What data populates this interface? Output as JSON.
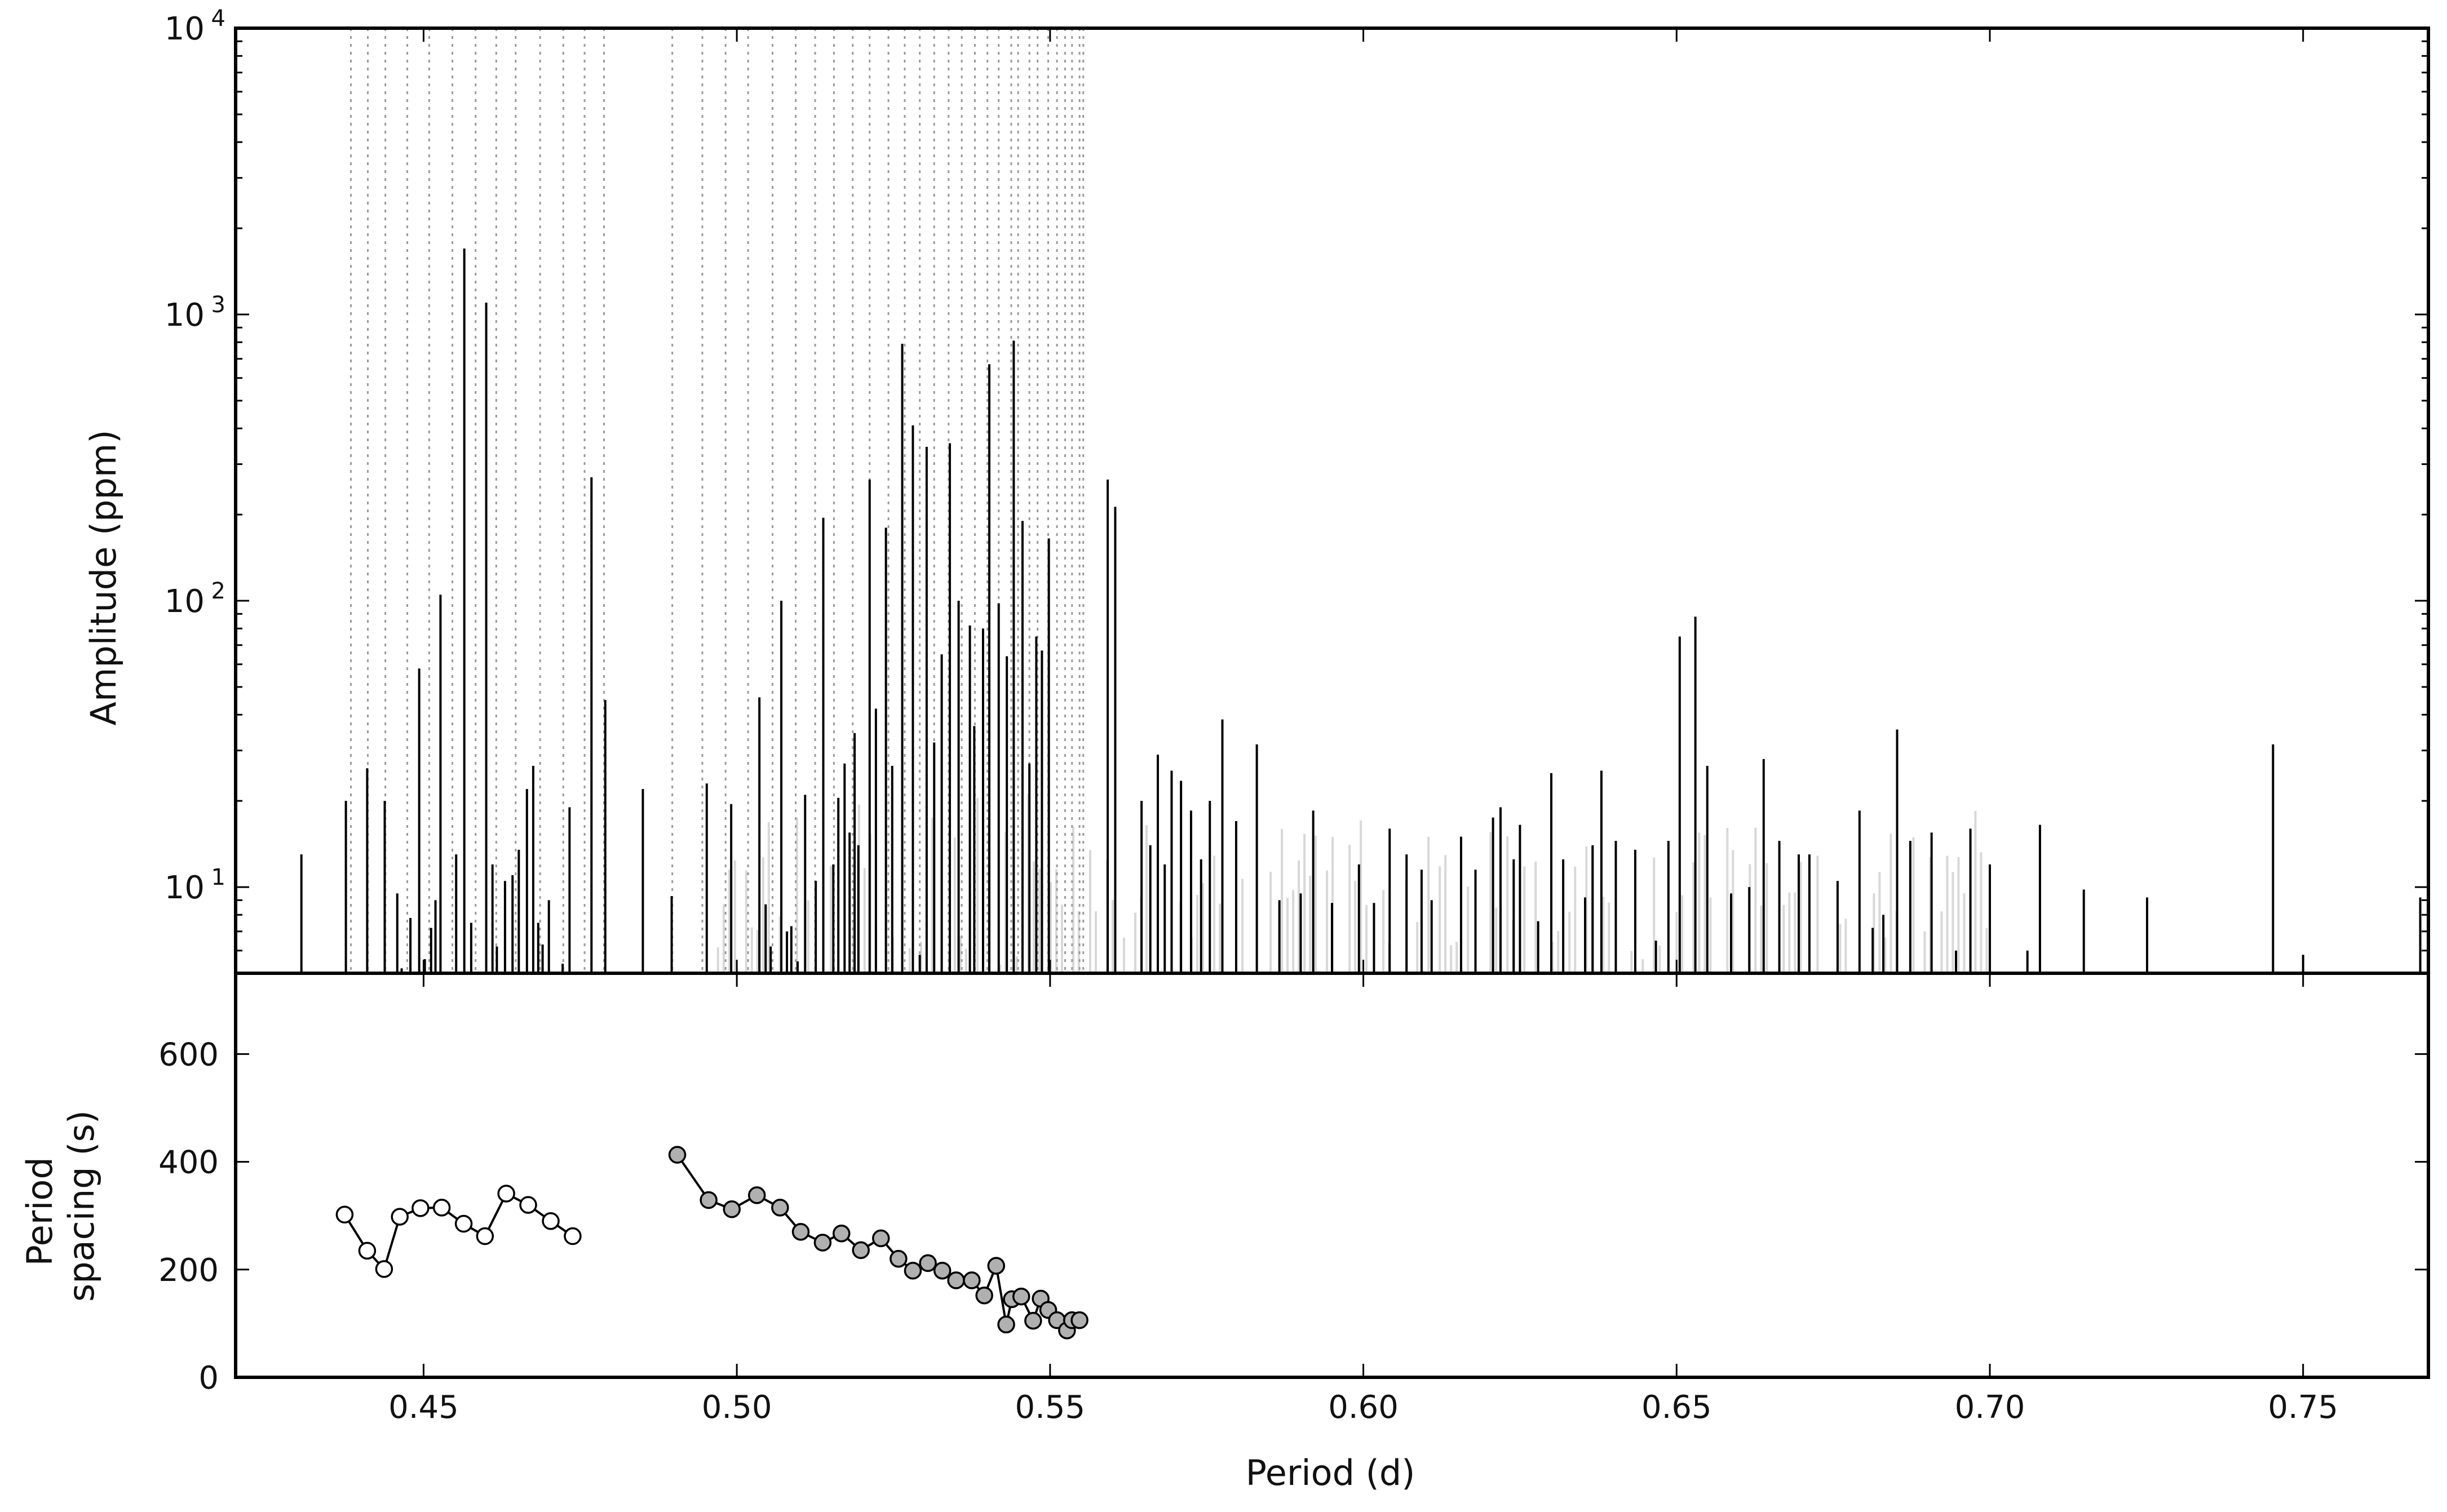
{
  "chart_data": [
    {
      "type": "bar",
      "panel": "top",
      "ylabel": "Amplitude (ppm)",
      "yscale": "log",
      "ylim": [
        5,
        10000
      ],
      "xlim": [
        0.42,
        0.77
      ],
      "ytick_values": [
        10,
        100,
        1000,
        10000
      ],
      "ytick_labels": [
        {
          "base": "10",
          "exp": "1"
        },
        {
          "base": "10",
          "exp": "2"
        },
        {
          "base": "10",
          "exp": "3"
        },
        {
          "base": "10",
          "exp": "4"
        }
      ],
      "grid": false,
      "prograde_series_periods": [
        0.4384,
        0.4411,
        0.4439,
        0.4474,
        0.4509,
        0.4546,
        0.4583,
        0.4616,
        0.4647,
        0.4686,
        0.4723,
        0.4757,
        0.4788
      ],
      "retrograde_series_periods": [
        0.4897,
        0.4945,
        0.4982,
        0.5018,
        0.5057,
        0.5094,
        0.5125,
        0.5155,
        0.5185,
        0.5212,
        0.5242,
        0.5268,
        0.5292,
        0.5315,
        0.5338,
        0.5359,
        0.538,
        0.54,
        0.5418,
        0.5438,
        0.5449,
        0.5467,
        0.548,
        0.5497,
        0.5511,
        0.5524,
        0.5535,
        0.5547,
        0.5553
      ],
      "peaks": [
        {
          "x": 0.4305,
          "y": 13
        },
        {
          "x": 0.4376,
          "y": 20
        },
        {
          "x": 0.441,
          "y": 26
        },
        {
          "x": 0.4438,
          "y": 20
        },
        {
          "x": 0.4458,
          "y": 9.5
        },
        {
          "x": 0.4465,
          "y": 5.2
        },
        {
          "x": 0.4479,
          "y": 7.8
        },
        {
          "x": 0.4493,
          "y": 58
        },
        {
          "x": 0.4502,
          "y": 5.6
        },
        {
          "x": 0.4512,
          "y": 7.2
        },
        {
          "x": 0.4519,
          "y": 9
        },
        {
          "x": 0.4527,
          "y": 105
        },
        {
          "x": 0.4552,
          "y": 13
        },
        {
          "x": 0.4565,
          "y": 1700
        },
        {
          "x": 0.4576,
          "y": 7.5
        },
        {
          "x": 0.46,
          "y": 1100
        },
        {
          "x": 0.461,
          "y": 12
        },
        {
          "x": 0.4617,
          "y": 6.2
        },
        {
          "x": 0.463,
          "y": 10.5
        },
        {
          "x": 0.4642,
          "y": 11
        },
        {
          "x": 0.4652,
          "y": 13.5
        },
        {
          "x": 0.4665,
          "y": 22
        },
        {
          "x": 0.4675,
          "y": 26.5
        },
        {
          "x": 0.4683,
          "y": 7.5
        },
        {
          "x": 0.469,
          "y": 6.3
        },
        {
          "x": 0.47,
          "y": 9
        },
        {
          "x": 0.4722,
          "y": 5.4
        },
        {
          "x": 0.4733,
          "y": 19
        },
        {
          "x": 0.4768,
          "y": 270
        },
        {
          "x": 0.479,
          "y": 45
        },
        {
          "x": 0.485,
          "y": 22
        },
        {
          "x": 0.4896,
          "y": 9.3
        },
        {
          "x": 0.4952,
          "y": 23
        },
        {
          "x": 0.4991,
          "y": 19.5
        },
        {
          "x": 0.5036,
          "y": 46
        },
        {
          "x": 0.5046,
          "y": 8.7
        },
        {
          "x": 0.5054,
          "y": 6.2
        },
        {
          "x": 0.5071,
          "y": 100
        },
        {
          "x": 0.508,
          "y": 7
        },
        {
          "x": 0.5087,
          "y": 7.3
        },
        {
          "x": 0.5097,
          "y": 5.5
        },
        {
          "x": 0.5109,
          "y": 21
        },
        {
          "x": 0.5126,
          "y": 10.5
        },
        {
          "x": 0.5138,
          "y": 195
        },
        {
          "x": 0.5154,
          "y": 12
        },
        {
          "x": 0.5162,
          "y": 20.5
        },
        {
          "x": 0.5172,
          "y": 27
        },
        {
          "x": 0.518,
          "y": 15.5
        },
        {
          "x": 0.5188,
          "y": 34.5
        },
        {
          "x": 0.5194,
          "y": 14
        },
        {
          "x": 0.5212,
          "y": 265
        },
        {
          "x": 0.5222,
          "y": 42
        },
        {
          "x": 0.5238,
          "y": 180
        },
        {
          "x": 0.5248,
          "y": 26.5
        },
        {
          "x": 0.5264,
          "y": 790
        },
        {
          "x": 0.5281,
          "y": 410
        },
        {
          "x": 0.5292,
          "y": 5.8
        },
        {
          "x": 0.5303,
          "y": 345
        },
        {
          "x": 0.5315,
          "y": 32
        },
        {
          "x": 0.5327,
          "y": 65
        },
        {
          "x": 0.534,
          "y": 355
        },
        {
          "x": 0.5354,
          "y": 100
        },
        {
          "x": 0.5372,
          "y": 82
        },
        {
          "x": 0.5379,
          "y": 36.5
        },
        {
          "x": 0.5393,
          "y": 80
        },
        {
          "x": 0.5403,
          "y": 670
        },
        {
          "x": 0.5418,
          "y": 98
        },
        {
          "x": 0.5431,
          "y": 64
        },
        {
          "x": 0.5442,
          "y": 810
        },
        {
          "x": 0.5456,
          "y": 190
        },
        {
          "x": 0.5467,
          "y": 27
        },
        {
          "x": 0.5478,
          "y": 75
        },
        {
          "x": 0.5487,
          "y": 67
        },
        {
          "x": 0.5498,
          "y": 165
        },
        {
          "x": 0.5592,
          "y": 265
        },
        {
          "x": 0.5604,
          "y": 213
        },
        {
          "x": 0.5646,
          "y": 20
        },
        {
          "x": 0.566,
          "y": 14
        },
        {
          "x": 0.5672,
          "y": 29
        },
        {
          "x": 0.5683,
          "y": 12
        },
        {
          "x": 0.5694,
          "y": 25.5
        },
        {
          "x": 0.5709,
          "y": 23.5
        },
        {
          "x": 0.5725,
          "y": 18.5
        },
        {
          "x": 0.5741,
          "y": 12.5
        },
        {
          "x": 0.5755,
          "y": 20
        },
        {
          "x": 0.5775,
          "y": 38.5
        },
        {
          "x": 0.5797,
          "y": 17
        },
        {
          "x": 0.583,
          "y": 31.5
        },
        {
          "x": 0.5866,
          "y": 9
        },
        {
          "x": 0.59,
          "y": 9.5
        },
        {
          "x": 0.592,
          "y": 18.5
        },
        {
          "x": 0.595,
          "y": 8.8
        },
        {
          "x": 0.5993,
          "y": 12
        },
        {
          "x": 0.6017,
          "y": 8.8
        },
        {
          "x": 0.6042,
          "y": 16
        },
        {
          "x": 0.6069,
          "y": 13
        },
        {
          "x": 0.6093,
          "y": 11.5
        },
        {
          "x": 0.6109,
          "y": 9
        },
        {
          "x": 0.6156,
          "y": 15
        },
        {
          "x": 0.6179,
          "y": 11.5
        },
        {
          "x": 0.6207,
          "y": 17.5
        },
        {
          "x": 0.6219,
          "y": 19
        },
        {
          "x": 0.624,
          "y": 12.5
        },
        {
          "x": 0.625,
          "y": 16.5
        },
        {
          "x": 0.6279,
          "y": 7.6
        },
        {
          "x": 0.63,
          "y": 25
        },
        {
          "x": 0.6319,
          "y": 12.5
        },
        {
          "x": 0.6354,
          "y": 9.2
        },
        {
          "x": 0.6366,
          "y": 14
        },
        {
          "x": 0.638,
          "y": 25.5
        },
        {
          "x": 0.6403,
          "y": 14.5
        },
        {
          "x": 0.6434,
          "y": 13.5
        },
        {
          "x": 0.6467,
          "y": 6.5
        },
        {
          "x": 0.6487,
          "y": 14.5
        },
        {
          "x": 0.6505,
          "y": 75
        },
        {
          "x": 0.653,
          "y": 88
        },
        {
          "x": 0.6549,
          "y": 26.5
        },
        {
          "x": 0.6587,
          "y": 9.5
        },
        {
          "x": 0.6616,
          "y": 10
        },
        {
          "x": 0.6639,
          "y": 28
        },
        {
          "x": 0.6664,
          "y": 14.5
        },
        {
          "x": 0.6695,
          "y": 13
        },
        {
          "x": 0.6712,
          "y": 13
        },
        {
          "x": 0.6757,
          "y": 10.5
        },
        {
          "x": 0.6792,
          "y": 18.5
        },
        {
          "x": 0.6813,
          "y": 7.2
        },
        {
          "x": 0.683,
          "y": 8
        },
        {
          "x": 0.6852,
          "y": 35.5
        },
        {
          "x": 0.6873,
          "y": 14.5
        },
        {
          "x": 0.6907,
          "y": 15.5
        },
        {
          "x": 0.6946,
          "y": 6
        },
        {
          "x": 0.6969,
          "y": 16
        },
        {
          "x": 0.7,
          "y": 12
        },
        {
          "x": 0.706,
          "y": 6
        },
        {
          "x": 0.708,
          "y": 16.5
        },
        {
          "x": 0.715,
          "y": 9.8
        },
        {
          "x": 0.7251,
          "y": 9.2
        },
        {
          "x": 0.7452,
          "y": 31.5
        },
        {
          "x": 0.75,
          "y": 5.8
        },
        {
          "x": 0.7687,
          "y": 9.2
        }
      ]
    },
    {
      "type": "scatter",
      "panel": "bottom",
      "xlabel": "Period (d)",
      "ylabel_lines": [
        "Period",
        "spacing (s)"
      ],
      "xlim": [
        0.42,
        0.77
      ],
      "ylim": [
        0,
        750
      ],
      "xtick_values": [
        0.45,
        0.5,
        0.55,
        0.6,
        0.65,
        0.7,
        0.75
      ],
      "xtick_labels": [
        "0.45",
        "0.50",
        "0.55",
        "0.60",
        "0.65",
        "0.70",
        "0.75"
      ],
      "ytick_values": [
        0,
        200,
        400,
        600
      ],
      "ytick_labels": [
        "0",
        "200",
        "400",
        "600"
      ],
      "grid": false,
      "series": [
        {
          "marker": "open-circle",
          "color": "#ffffff",
          "x": [
            0.4374,
            0.441,
            0.4437,
            0.4462,
            0.4495,
            0.4529,
            0.4564,
            0.4598,
            0.4632,
            0.4667,
            0.4703,
            0.4738
          ],
          "y": [
            302,
            235,
            201,
            298,
            314,
            315,
            285,
            262,
            341,
            320,
            290,
            262
          ]
        },
        {
          "marker": "filled-circle",
          "color": "#b0b0b0",
          "x": [
            0.4905,
            0.4955,
            0.4992,
            0.5032,
            0.5069,
            0.5102,
            0.5137,
            0.5167,
            0.5198,
            0.523,
            0.5258,
            0.5281,
            0.5305,
            0.5328,
            0.535,
            0.5375,
            0.5395,
            0.5414,
            0.543,
            0.5439,
            0.5454,
            0.5473,
            0.5485,
            0.5497,
            0.5511,
            0.5527,
            0.5535,
            0.5547
          ],
          "y": [
            413,
            329,
            312,
            338,
            315,
            270,
            250,
            267,
            236,
            258,
            220,
            198,
            212,
            198,
            180,
            180,
            152,
            207,
            98,
            145,
            150,
            105,
            146,
            125,
            106,
            87,
            106,
            106
          ]
        }
      ]
    }
  ],
  "colors": {
    "peak_line": "#000000",
    "background_spectrum": "#d8d8d8",
    "series_guide": "#9a9a9a",
    "filled_marker": "#b0b0b0",
    "axis": "#000000"
  }
}
